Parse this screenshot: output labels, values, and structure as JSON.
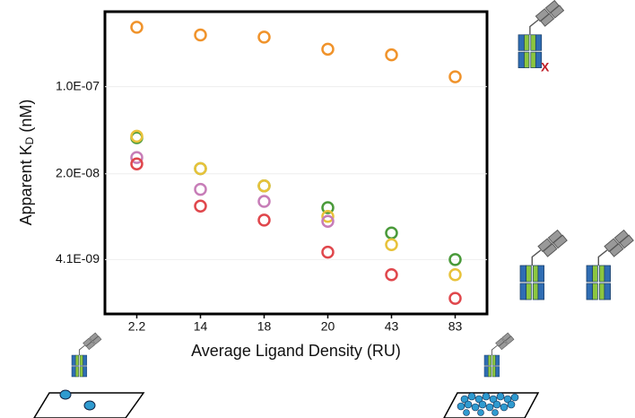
{
  "chart_data": {
    "type": "scatter",
    "log_y": true,
    "grid": true,
    "categories": [
      "2.2",
      "14",
      "18",
      "20",
      "43",
      "83"
    ],
    "x_label": "Average Ligand Density (RU)",
    "y_label": [
      "Apparent K",
      "D",
      " (nM)"
    ],
    "ylim": [
      1.5e-09,
      4e-07
    ],
    "yticks": [
      {
        "value": 1e-07,
        "label": "1.0E-07"
      },
      {
        "value": 2e-08,
        "label": "2.0E-08"
      },
      {
        "value": 4.1e-09,
        "label": "4.1E-09"
      }
    ],
    "annotation": "X",
    "series": [
      {
        "color": "#f0932b",
        "values": [
          3e-07,
          2.6e-07,
          2.5e-07,
          2e-07,
          1.8e-07,
          1.2e-07
        ]
      },
      {
        "color": "#4a9a3a",
        "values": [
          3.9e-08,
          2.2e-08,
          1.6e-08,
          1.07e-08,
          6.7e-09,
          4.1e-09
        ]
      },
      {
        "color": "#e8c23a",
        "values": [
          4e-08,
          2.2e-08,
          1.6e-08,
          9.1e-09,
          5.4e-09,
          3.1e-09
        ]
      },
      {
        "color": "#c77db8",
        "values": [
          2.7e-08,
          1.5e-08,
          1.2e-08,
          8.3e-09,
          null,
          null
        ]
      },
      {
        "color": "#e0474c",
        "values": [
          2.4e-08,
          1.1e-08,
          8.5e-09,
          4.7e-09,
          3.1e-09,
          2e-09
        ]
      }
    ]
  }
}
